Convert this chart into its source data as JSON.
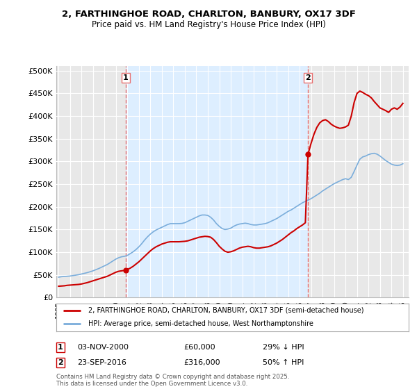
{
  "title_line1": "2, FARTHINGHOE ROAD, CHARLTON, BANBURY, OX17 3DF",
  "title_line2": "Price paid vs. HM Land Registry's House Price Index (HPI)",
  "ylabel_ticks": [
    "£0",
    "£50K",
    "£100K",
    "£150K",
    "£200K",
    "£250K",
    "£300K",
    "£350K",
    "£400K",
    "£450K",
    "£500K"
  ],
  "ytick_values": [
    0,
    50000,
    100000,
    150000,
    200000,
    250000,
    300000,
    350000,
    400000,
    450000,
    500000
  ],
  "xlim_start": 1994.8,
  "xlim_end": 2025.5,
  "ylim": [
    0,
    510000
  ],
  "legend_property_label": "2, FARTHINGHOE ROAD, CHARLTON, BANBURY, OX17 3DF (semi-detached house)",
  "legend_hpi_label": "HPI: Average price, semi-detached house, West Northamptonshire",
  "sale1_date_label": "03-NOV-2000",
  "sale1_price_label": "£60,000",
  "sale1_hpi_label": "29% ↓ HPI",
  "sale2_date_label": "23-SEP-2016",
  "sale2_price_label": "£316,000",
  "sale2_hpi_label": "50% ↑ HPI",
  "footnote": "Contains HM Land Registry data © Crown copyright and database right 2025.\nThis data is licensed under the Open Government Licence v3.0.",
  "sale1_x": 2000.84,
  "sale1_y": 60000,
  "sale2_x": 2016.73,
  "sale2_y": 316000,
  "property_color": "#cc0000",
  "hpi_color": "#7aaddb",
  "vline_color": "#e87070",
  "background_color": "#ffffff",
  "plot_bg_color": "#e8e8e8",
  "shade_color": "#ddeeff",
  "hpi_data_x": [
    1995.0,
    1995.25,
    1995.5,
    1995.75,
    1996.0,
    1996.25,
    1996.5,
    1996.75,
    1997.0,
    1997.25,
    1997.5,
    1997.75,
    1998.0,
    1998.25,
    1998.5,
    1998.75,
    1999.0,
    1999.25,
    1999.5,
    1999.75,
    2000.0,
    2000.25,
    2000.5,
    2000.75,
    2001.0,
    2001.25,
    2001.5,
    2001.75,
    2002.0,
    2002.25,
    2002.5,
    2002.75,
    2003.0,
    2003.25,
    2003.5,
    2003.75,
    2004.0,
    2004.25,
    2004.5,
    2004.75,
    2005.0,
    2005.25,
    2005.5,
    2005.75,
    2006.0,
    2006.25,
    2006.5,
    2006.75,
    2007.0,
    2007.25,
    2007.5,
    2007.75,
    2008.0,
    2008.25,
    2008.5,
    2008.75,
    2009.0,
    2009.25,
    2009.5,
    2009.75,
    2010.0,
    2010.25,
    2010.5,
    2010.75,
    2011.0,
    2011.25,
    2011.5,
    2011.75,
    2012.0,
    2012.25,
    2012.5,
    2012.75,
    2013.0,
    2013.25,
    2013.5,
    2013.75,
    2014.0,
    2014.25,
    2014.5,
    2014.75,
    2015.0,
    2015.25,
    2015.5,
    2015.75,
    2016.0,
    2016.25,
    2016.5,
    2016.75,
    2017.0,
    2017.25,
    2017.5,
    2017.75,
    2018.0,
    2018.25,
    2018.5,
    2018.75,
    2019.0,
    2019.25,
    2019.5,
    2019.75,
    2020.0,
    2020.25,
    2020.5,
    2020.75,
    2021.0,
    2021.25,
    2021.5,
    2021.75,
    2022.0,
    2022.25,
    2022.5,
    2022.75,
    2023.0,
    2023.25,
    2023.5,
    2023.75,
    2024.0,
    2024.25,
    2024.5,
    2024.75,
    2025.0
  ],
  "hpi_data_y": [
    45000,
    46000,
    46500,
    47000,
    47500,
    48500,
    49500,
    50500,
    52000,
    53500,
    55000,
    57000,
    59000,
    61500,
    64000,
    67000,
    70000,
    73000,
    77000,
    81000,
    85000,
    88000,
    90000,
    91000,
    93000,
    97000,
    101000,
    106000,
    112000,
    119000,
    127000,
    134000,
    140000,
    145000,
    149000,
    152000,
    155000,
    158000,
    161000,
    163000,
    163000,
    163000,
    163000,
    163500,
    165000,
    168000,
    171000,
    174000,
    177000,
    180000,
    182000,
    182000,
    181000,
    177000,
    171000,
    163000,
    157000,
    152000,
    150000,
    151000,
    153000,
    157000,
    160000,
    162000,
    163000,
    164000,
    163000,
    161000,
    160000,
    160000,
    161000,
    162000,
    163000,
    165000,
    168000,
    171000,
    174000,
    178000,
    182000,
    186000,
    190000,
    193000,
    197000,
    201000,
    205000,
    209000,
    212000,
    215000,
    218000,
    222000,
    226000,
    230000,
    235000,
    239000,
    243000,
    247000,
    251000,
    254000,
    257000,
    260000,
    262000,
    260000,
    265000,
    278000,
    292000,
    305000,
    310000,
    312000,
    315000,
    317000,
    318000,
    316000,
    312000,
    307000,
    302000,
    298000,
    294000,
    292000,
    291000,
    292000,
    295000
  ],
  "prop_before_x": [
    1995.0,
    1995.25,
    1995.5,
    1995.75,
    1996.0,
    1996.25,
    1996.5,
    1996.75,
    1997.0,
    1997.25,
    1997.5,
    1997.75,
    1998.0,
    1998.25,
    1998.5,
    1998.75,
    1999.0,
    1999.25,
    1999.5,
    1999.75,
    2000.0,
    2000.25,
    2000.5,
    2000.75,
    2000.84
  ],
  "prop_before_y": [
    25000,
    25500,
    26000,
    27000,
    27500,
    28000,
    28500,
    29000,
    30000,
    31500,
    33000,
    35000,
    37000,
    39000,
    41000,
    43000,
    45000,
    47000,
    50000,
    53000,
    56000,
    58000,
    59000,
    60000,
    60000
  ],
  "prop_between_x": [
    2000.84,
    2001.0,
    2001.25,
    2001.5,
    2001.75,
    2002.0,
    2002.25,
    2002.5,
    2002.75,
    2003.0,
    2003.25,
    2003.5,
    2003.75,
    2004.0,
    2004.25,
    2004.5,
    2004.75,
    2005.0,
    2005.25,
    2005.5,
    2005.75,
    2006.0,
    2006.25,
    2006.5,
    2006.75,
    2007.0,
    2007.25,
    2007.5,
    2007.75,
    2008.0,
    2008.25,
    2008.5,
    2008.75,
    2009.0,
    2009.25,
    2009.5,
    2009.75,
    2010.0,
    2010.25,
    2010.5,
    2010.75,
    2011.0,
    2011.25,
    2011.5,
    2011.75,
    2012.0,
    2012.25,
    2012.5,
    2012.75,
    2013.0,
    2013.25,
    2013.5,
    2013.75,
    2014.0,
    2014.25,
    2014.5,
    2014.75,
    2015.0,
    2015.25,
    2015.5,
    2015.75,
    2016.0,
    2016.25,
    2016.5,
    2016.73
  ],
  "prop_between_y": [
    60000,
    62000,
    65000,
    69000,
    74000,
    79000,
    85000,
    91000,
    97000,
    103000,
    108000,
    112000,
    115000,
    118000,
    120000,
    122000,
    123000,
    123000,
    123000,
    123000,
    123500,
    124000,
    125000,
    127000,
    129000,
    131000,
    133000,
    134000,
    135000,
    134500,
    133000,
    128000,
    121000,
    113000,
    107000,
    102000,
    100000,
    101000,
    103000,
    106000,
    109000,
    111000,
    112000,
    113000,
    112000,
    110000,
    109000,
    109000,
    110000,
    111000,
    112000,
    114000,
    117000,
    120000,
    124000,
    128000,
    133000,
    138000,
    143000,
    147000,
    152000,
    156000,
    160000,
    165000,
    316000
  ],
  "prop_after_x": [
    2016.73,
    2017.0,
    2017.25,
    2017.5,
    2017.75,
    2018.0,
    2018.25,
    2018.5,
    2018.75,
    2019.0,
    2019.25,
    2019.5,
    2019.75,
    2020.0,
    2020.25,
    2020.5,
    2020.75,
    2021.0,
    2021.25,
    2021.5,
    2021.75,
    2022.0,
    2022.25,
    2022.5,
    2022.75,
    2023.0,
    2023.25,
    2023.5,
    2023.75,
    2024.0,
    2024.25,
    2024.5,
    2024.75,
    2025.0
  ],
  "prop_after_y": [
    316000,
    340000,
    360000,
    375000,
    385000,
    390000,
    392000,
    388000,
    382000,
    378000,
    375000,
    373000,
    374000,
    376000,
    380000,
    400000,
    430000,
    450000,
    455000,
    452000,
    448000,
    445000,
    440000,
    432000,
    425000,
    418000,
    415000,
    412000,
    408000,
    415000,
    418000,
    415000,
    420000,
    428000
  ]
}
